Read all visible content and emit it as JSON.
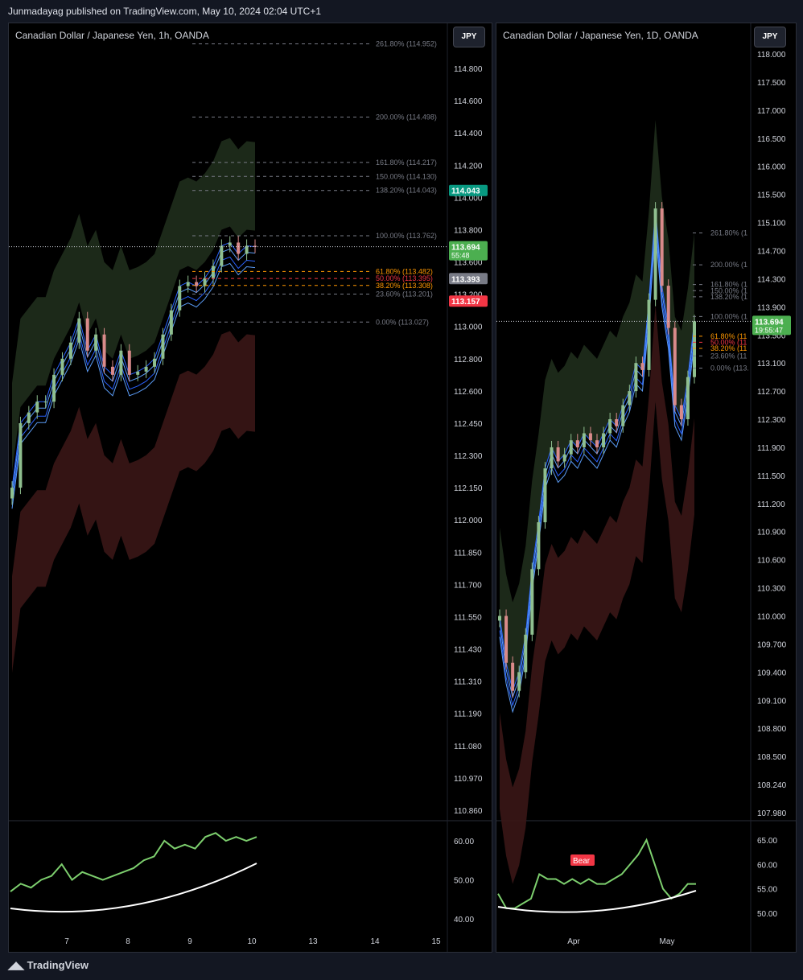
{
  "header": {
    "published": "Junmadayag published on TradingView.com, May 10, 2024 02:04 UTC+1"
  },
  "footer": {
    "brand": "TradingView"
  },
  "left_panel": {
    "title": "Canadian Dollar / Japanese Yen, 1h, OANDA",
    "currency_button": "JPY"
  },
  "right_panel": {
    "title": "Canadian Dollar / Japanese Yen, 1D, OANDA",
    "currency_button": "JPY"
  },
  "colors": {
    "up": "#8fbf8f",
    "down": "#d98a8a",
    "fib": "#787b86",
    "fib618": "#ff9800",
    "fib50": "#f23645",
    "ema": "#2962ff",
    "rsi": "#7dcf6e"
  },
  "chart_data": [
    {
      "type": "candlestick",
      "title": "Canadian Dollar / Japanese Yen, 1h, OANDA",
      "y_ticks": [
        114.8,
        114.6,
        114.4,
        114.2,
        114.0,
        113.8,
        113.6,
        113.2,
        113.0,
        112.8,
        112.6,
        112.45,
        112.3,
        112.15,
        112.0,
        111.85,
        111.7,
        111.55,
        111.43,
        111.31,
        111.19,
        111.08,
        110.97,
        110.86
      ],
      "x_ticks": [
        "7",
        "8",
        "9",
        "10",
        "13",
        "14",
        "15"
      ],
      "fib_levels": [
        {
          "label": "261.80% (114.952)",
          "value": 114.952
        },
        {
          "label": "200.00% (114.498)",
          "value": 114.498
        },
        {
          "label": "161.80% (114.217)",
          "value": 114.217
        },
        {
          "label": "150.00% (114.130)",
          "value": 114.13
        },
        {
          "label": "138.20% (114.043)",
          "value": 114.043
        },
        {
          "label": "100.00% (113.762)",
          "value": 113.762
        },
        {
          "label": "61.80% (113.482)",
          "value": 113.482
        },
        {
          "label": "50.00% (113.395)",
          "value": 113.395
        },
        {
          "label": "38.20% (113.308)",
          "value": 113.308
        },
        {
          "label": "23.60% (113.201)",
          "value": 113.201
        },
        {
          "label": "0.00% (113.027)",
          "value": 113.027
        }
      ],
      "price_labels": [
        {
          "text": "114.043",
          "value": 114.043,
          "color": "#089981"
        },
        {
          "text": "113.694",
          "sub": "55:48",
          "value": 113.694,
          "color": "#4caf50"
        },
        {
          "text": "113.393",
          "value": 113.393,
          "color": "#787b86"
        },
        {
          "text": "113.157",
          "value": 113.157,
          "color": "#f23645"
        }
      ],
      "close": [
        112.15,
        112.45,
        112.5,
        112.55,
        112.55,
        112.7,
        112.8,
        112.9,
        113.05,
        112.85,
        112.95,
        112.75,
        112.7,
        112.85,
        112.7,
        112.72,
        112.75,
        112.8,
        112.95,
        113.1,
        113.3,
        113.35,
        113.3,
        113.4,
        113.55,
        113.7,
        113.72,
        113.65,
        113.7,
        113.694
      ],
      "rsi": {
        "y_ticks": [
          60.0,
          50.0,
          40.0
        ],
        "line": [
          47,
          49,
          48,
          50,
          51,
          54,
          50,
          52,
          51,
          50,
          51,
          52,
          53,
          55,
          56,
          60,
          58,
          59,
          58,
          61,
          62,
          60,
          61,
          60,
          61
        ]
      }
    },
    {
      "type": "candlestick",
      "title": "Canadian Dollar / Japanese Yen, 1D, OANDA",
      "y_ticks": [
        118.0,
        117.5,
        117.0,
        116.5,
        116.0,
        115.5,
        115.1,
        114.7,
        114.3,
        113.9,
        113.5,
        113.1,
        112.7,
        112.3,
        111.9,
        111.5,
        111.2,
        110.9,
        110.6,
        110.3,
        110.0,
        109.7,
        109.4,
        109.1,
        108.8,
        108.5,
        108.24,
        107.98
      ],
      "x_ticks": [
        "Apr",
        "May"
      ],
      "fib_levels": [
        {
          "label": "261.80% (1",
          "value": 114.952
        },
        {
          "label": "200.00% (1",
          "value": 114.498
        },
        {
          "label": "161.80% (1",
          "value": 114.217
        },
        {
          "label": "150.00% (1",
          "value": 114.13
        },
        {
          "label": "138.20% (1",
          "value": 114.043
        },
        {
          "label": "100.00% (1",
          "value": 113.762
        },
        {
          "label": "61.80% (11",
          "value": 113.482
        },
        {
          "label": "50.00% (11",
          "value": 113.395
        },
        {
          "label": "38.20% (11",
          "value": 113.308
        },
        {
          "label": "23.60% (11",
          "value": 113.201
        },
        {
          "label": "0.00% (113.",
          "value": 113.027
        }
      ],
      "price_labels": [
        {
          "text": "113.694",
          "sub": "19:55:47",
          "value": 113.694,
          "color": "#4caf50"
        }
      ],
      "close": [
        110.0,
        109.5,
        109.2,
        109.4,
        109.8,
        110.5,
        111.0,
        111.6,
        111.9,
        111.7,
        111.8,
        112.0,
        111.9,
        112.1,
        112.0,
        111.9,
        112.1,
        112.3,
        112.2,
        112.5,
        112.7,
        113.1,
        113.0,
        114.0,
        115.3,
        114.2,
        113.6,
        112.5,
        112.3,
        112.9,
        113.694
      ],
      "rsi": {
        "y_ticks": [
          65.0,
          60.0,
          55.0,
          50.0
        ],
        "line": [
          54,
          51,
          51,
          52,
          53,
          58,
          57,
          57,
          56,
          57,
          56,
          57,
          56,
          56,
          57,
          58,
          60,
          62,
          65,
          60,
          55,
          53,
          54,
          56,
          56
        ],
        "label": "Bear"
      }
    }
  ]
}
